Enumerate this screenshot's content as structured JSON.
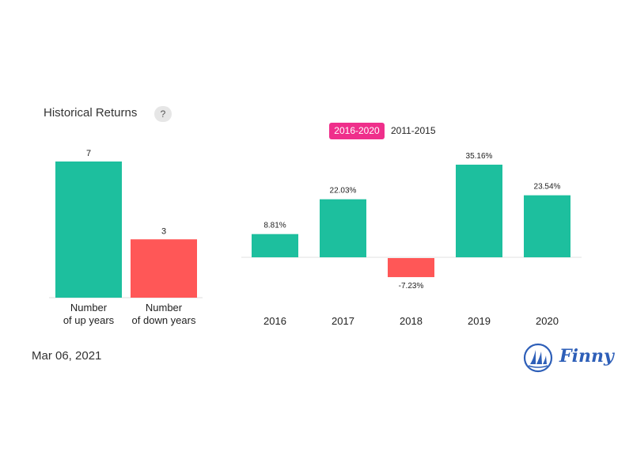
{
  "header": {
    "title": "Historical Returns",
    "help_label": "?"
  },
  "tabs": [
    {
      "label": "2016-2020",
      "active": true
    },
    {
      "label": "2011-2015",
      "active": false
    }
  ],
  "footer": {
    "date": "Mar 06, 2021",
    "brand": "Finny"
  },
  "colors": {
    "positive": "#1dbf9e",
    "negative": "#ff5757",
    "accent": "#ef2f8b",
    "brand": "#2e5fb8"
  },
  "chart_data": [
    {
      "type": "bar",
      "categories": [
        [
          "Number",
          "of up years"
        ],
        [
          "Number",
          "of down years"
        ]
      ],
      "values": [
        7,
        3
      ],
      "data_labels": [
        "7",
        "3"
      ],
      "ylim": [
        0,
        7
      ]
    },
    {
      "type": "bar",
      "categories": [
        "2016",
        "2017",
        "2018",
        "2019",
        "2020"
      ],
      "values": [
        8.81,
        22.03,
        -7.23,
        35.16,
        23.54
      ],
      "data_labels": [
        "8.81%",
        "22.03%",
        "-7.23%",
        "35.16%",
        "23.54%"
      ]
    }
  ]
}
